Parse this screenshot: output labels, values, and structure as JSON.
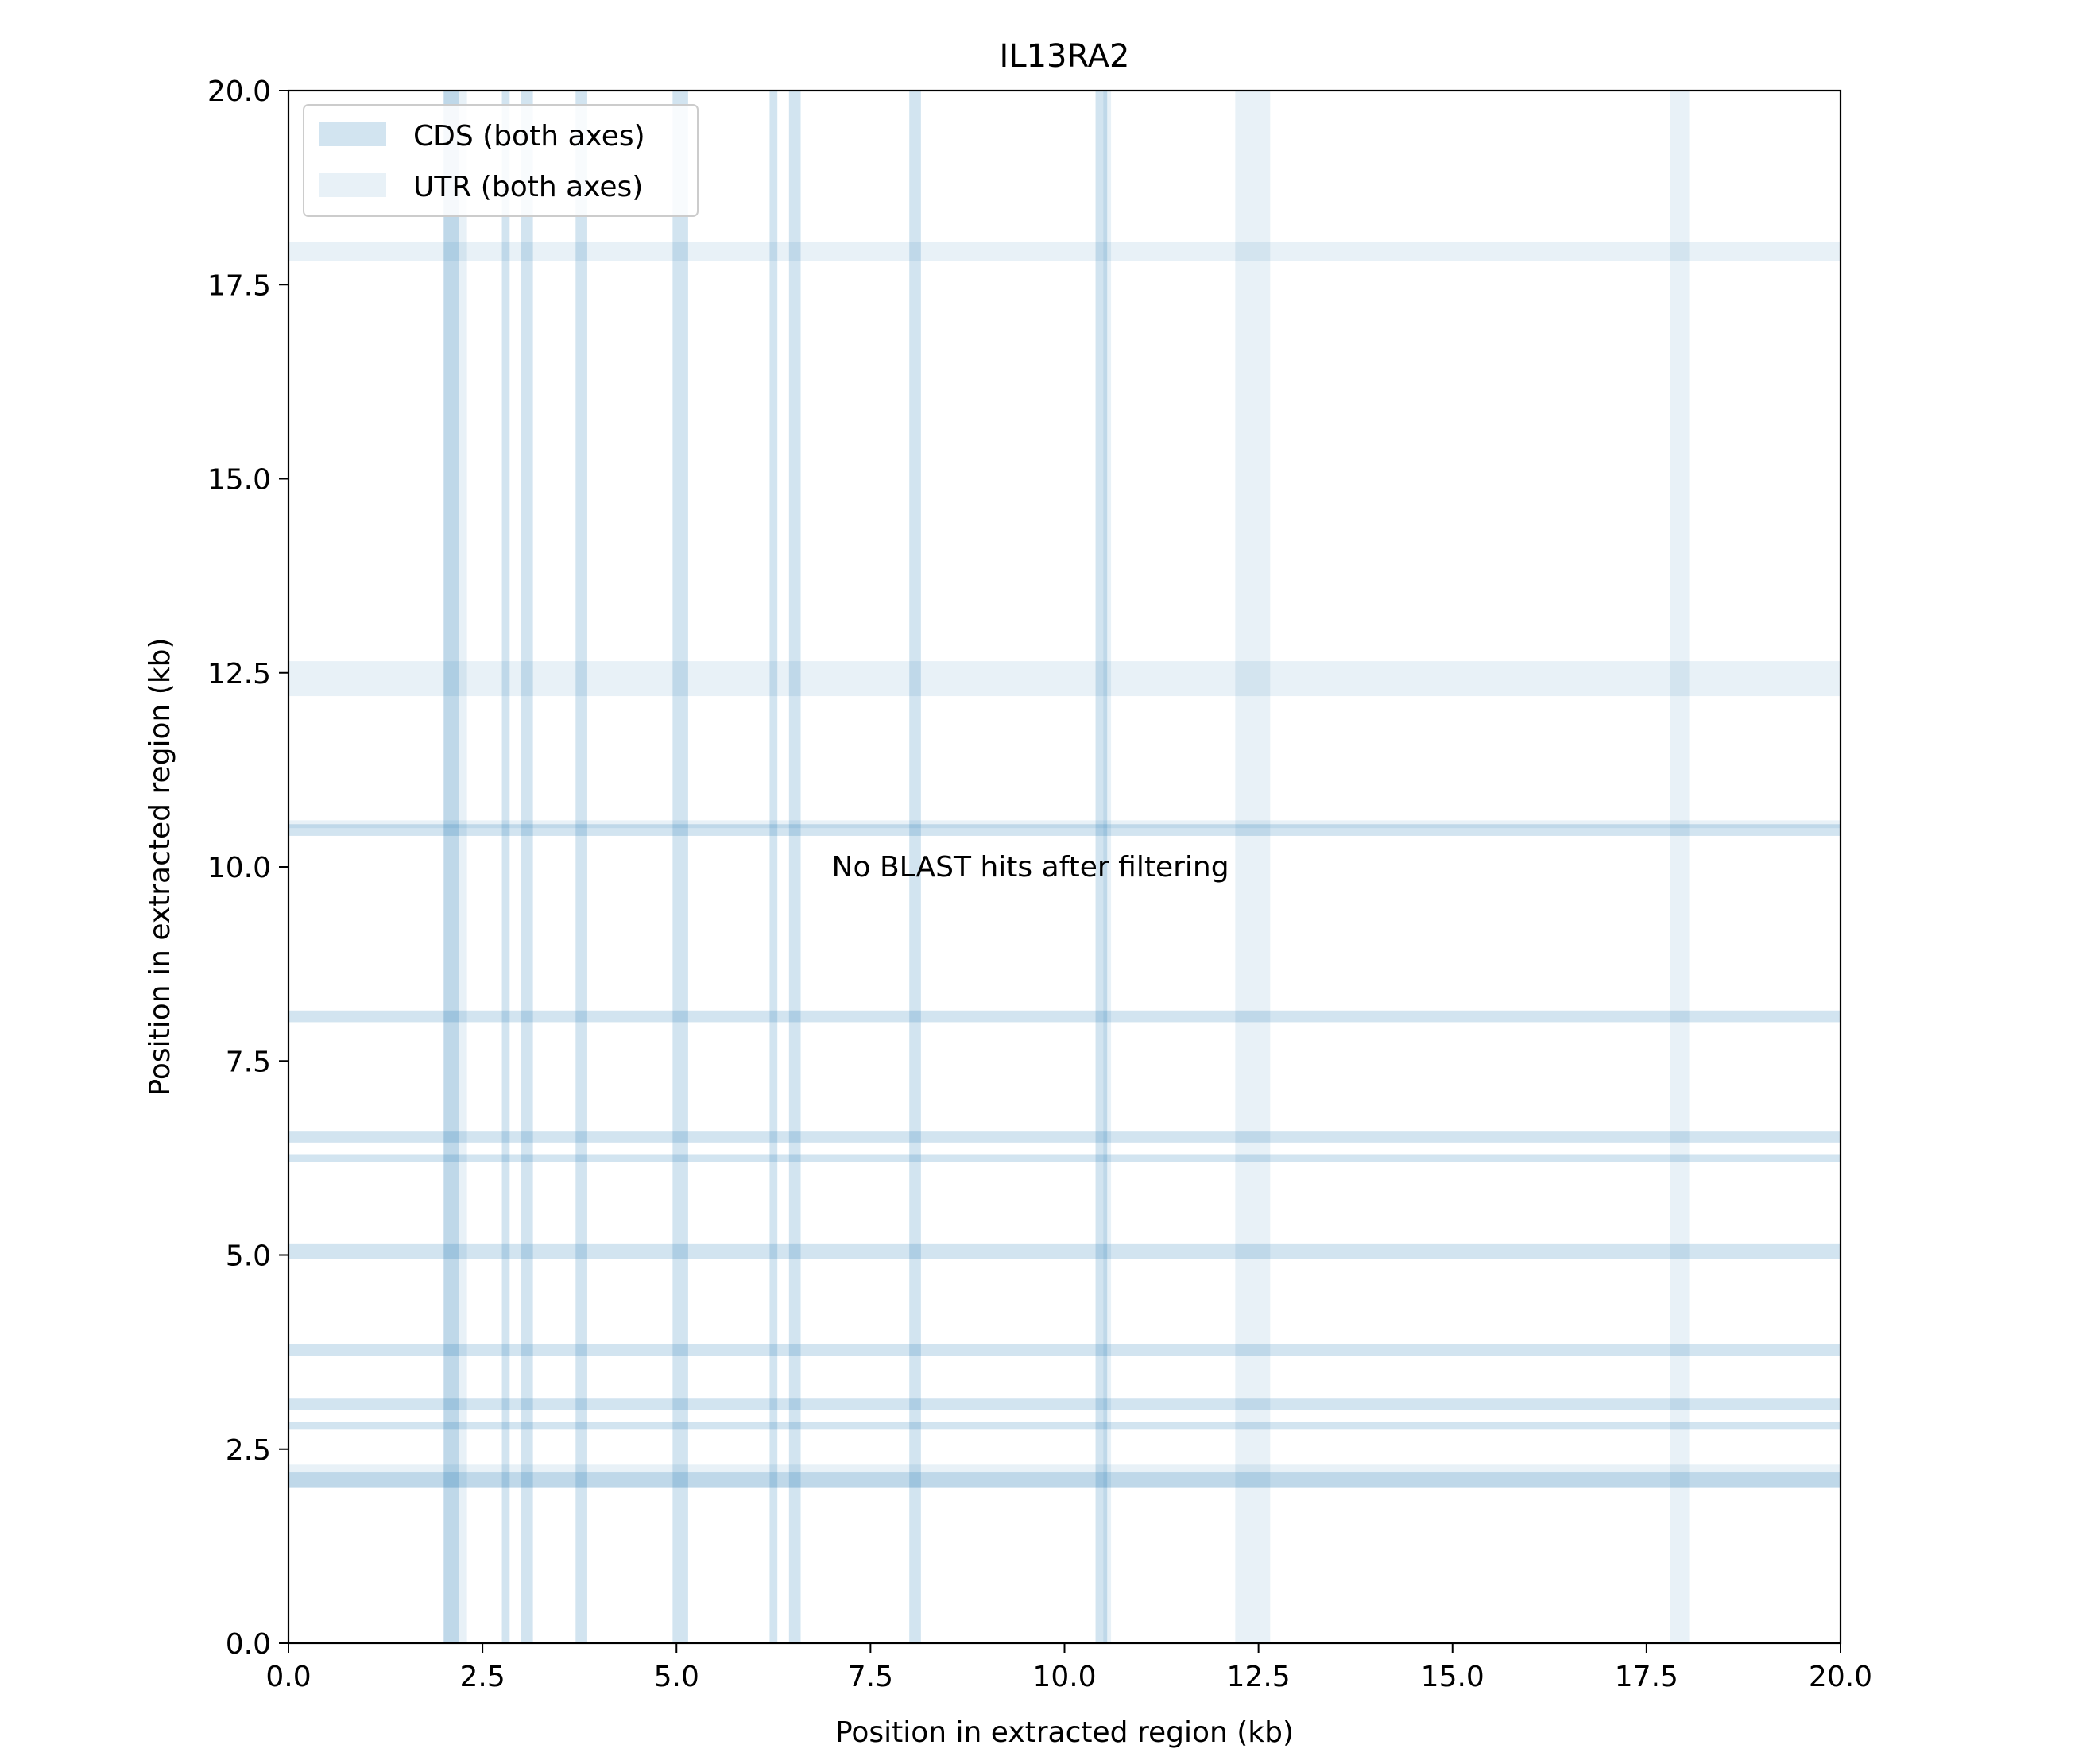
{
  "chart_data": {
    "type": "dotplot",
    "title": "IL13RA2",
    "xlabel": "Position in extracted region (kb)",
    "ylabel": "Position in extracted region (kb)",
    "xlim": [
      0,
      20
    ],
    "ylim": [
      0,
      20
    ],
    "xticks": [
      "0.0",
      "2.5",
      "5.0",
      "7.5",
      "10.0",
      "12.5",
      "15.0",
      "17.5",
      "20.0"
    ],
    "yticks": [
      "0.0",
      "2.5",
      "5.0",
      "7.5",
      "10.0",
      "12.5",
      "15.0",
      "17.5",
      "20.0"
    ],
    "tick_values": [
      0,
      2.5,
      5,
      7.5,
      10,
      12.5,
      15,
      17.5,
      20
    ],
    "grid": false,
    "legend_position": "top-left",
    "legend": [
      {
        "label": "CDS (both axes)",
        "color": "#c6dcec"
      },
      {
        "label": "UTR (both axes)",
        "color": "#e4eef7"
      }
    ],
    "annotation": "No BLAST hits after filtering",
    "colors": {
      "cds": "#1f77b4",
      "utr": "#1f77b4",
      "axis": "#000000"
    },
    "utr_regions": [
      [
        2.0,
        2.3
      ],
      [
        10.5,
        10.6
      ],
      [
        12.2,
        12.65
      ],
      [
        17.8,
        18.05
      ]
    ],
    "cds_regions": [
      [
        2.0,
        2.2
      ],
      [
        2.75,
        2.85
      ],
      [
        3.0,
        3.15
      ],
      [
        3.7,
        3.85
      ],
      [
        4.95,
        5.15
      ],
      [
        6.2,
        6.3
      ],
      [
        6.45,
        6.6
      ],
      [
        8.0,
        8.15
      ],
      [
        10.4,
        10.55
      ]
    ],
    "points": []
  }
}
